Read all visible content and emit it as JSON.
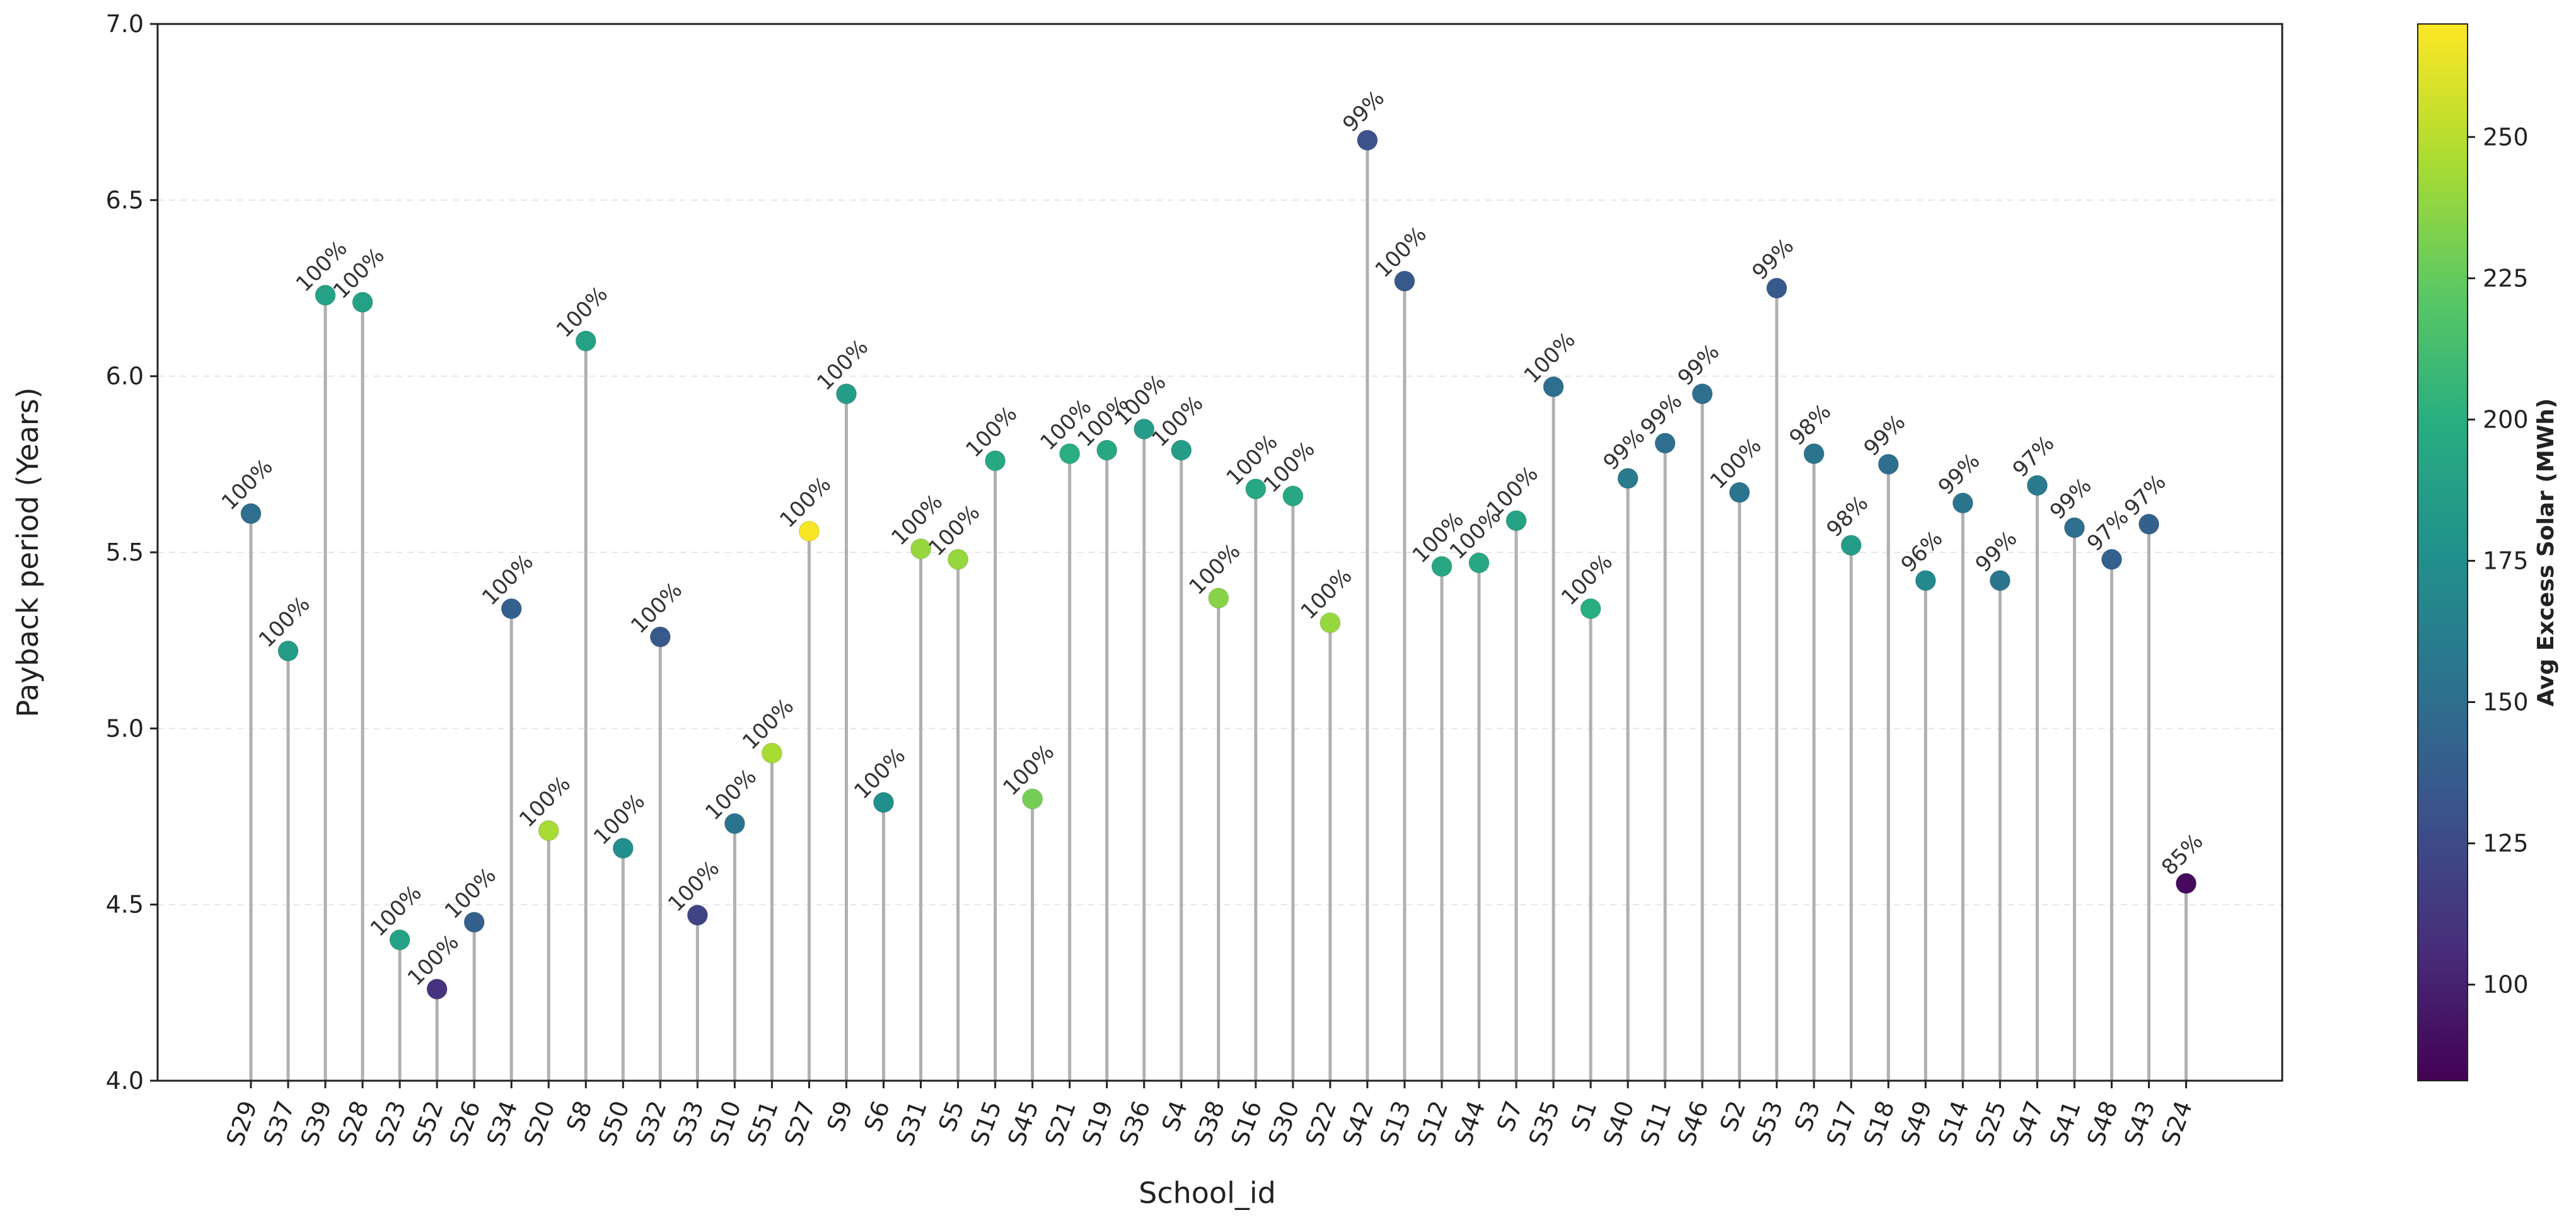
{
  "chart_data": {
    "type": "scatter",
    "style": "lollipop",
    "xlabel": "School_id",
    "ylabel": "Payback period (Years)",
    "ylim": [
      4.0,
      7.0
    ],
    "yticks": [
      4.0,
      4.5,
      5.0,
      5.5,
      6.0,
      6.5,
      7.0
    ],
    "ytick_labels": [
      "4.0",
      "4.5",
      "5.0",
      "5.5",
      "6.0",
      "6.5",
      "7.0"
    ],
    "grid": "horizontal dashed",
    "categories": [
      "S29",
      "S37",
      "S39",
      "S28",
      "S23",
      "S52",
      "S26",
      "S34",
      "S20",
      "S8",
      "S50",
      "S32",
      "S33",
      "S10",
      "S51",
      "S27",
      "S9",
      "S6",
      "S31",
      "S5",
      "S15",
      "S45",
      "S21",
      "S19",
      "S36",
      "S4",
      "S38",
      "S16",
      "S30",
      "S22",
      "S42",
      "S13",
      "S12",
      "S44",
      "S7",
      "S35",
      "S1",
      "S40",
      "S11",
      "S46",
      "S2",
      "S53",
      "S3",
      "S17",
      "S18",
      "S49",
      "S14",
      "S25",
      "S47",
      "S41",
      "S48",
      "S43",
      "S24"
    ],
    "values": [
      5.61,
      5.22,
      6.23,
      6.21,
      4.4,
      4.26,
      4.45,
      5.34,
      4.71,
      6.1,
      4.66,
      5.26,
      4.47,
      4.73,
      4.93,
      5.56,
      5.95,
      4.79,
      5.51,
      5.48,
      5.76,
      4.8,
      5.78,
      5.79,
      5.85,
      5.79,
      5.37,
      5.68,
      5.66,
      5.3,
      6.67,
      6.27,
      5.46,
      5.47,
      5.59,
      5.97,
      5.34,
      5.71,
      5.81,
      5.95,
      5.67,
      6.25,
      5.78,
      5.52,
      5.75,
      5.42,
      5.64,
      5.42,
      5.69,
      5.57,
      5.48,
      5.58,
      4.56
    ],
    "point_labels": [
      "100%",
      "100%",
      "100%",
      "100%",
      "100%",
      "100%",
      "100%",
      "100%",
      "100%",
      "100%",
      "100%",
      "100%",
      "100%",
      "100%",
      "100%",
      "100%",
      "100%",
      "100%",
      "100%",
      "100%",
      "100%",
      "100%",
      "100%",
      "100%",
      "100%",
      "100%",
      "100%",
      "100%",
      "100%",
      "100%",
      "99%",
      "100%",
      "100%",
      "100%",
      "100%",
      "100%",
      "100%",
      "99%",
      "99%",
      "99%",
      "100%",
      "99%",
      "98%",
      "98%",
      "99%",
      "96%",
      "99%",
      "99%",
      "97%",
      "99%",
      "97%",
      "97%",
      "85%"
    ],
    "color_values": [
      150,
      185,
      190,
      190,
      190,
      110,
      140,
      140,
      245,
      190,
      175,
      135,
      120,
      155,
      245,
      268,
      185,
      175,
      240,
      240,
      195,
      230,
      200,
      195,
      185,
      185,
      235,
      195,
      195,
      240,
      130,
      135,
      195,
      195,
      190,
      150,
      200,
      160,
      150,
      150,
      155,
      135,
      155,
      185,
      150,
      170,
      155,
      155,
      160,
      150,
      140,
      140,
      88
    ],
    "colorbar": {
      "label": "Avg Excess Solar (MWh)",
      "colormap": "viridis",
      "range": [
        83,
        270
      ],
      "ticks": [
        100,
        125,
        150,
        175,
        200,
        225,
        250
      ],
      "tick_labels": [
        "100",
        "125",
        "150",
        "175",
        "200",
        "225",
        "250"
      ]
    },
    "colors": {
      "stem": "#b0b0b0",
      "grid": "#e6e6e6",
      "axis": "#222222"
    }
  }
}
